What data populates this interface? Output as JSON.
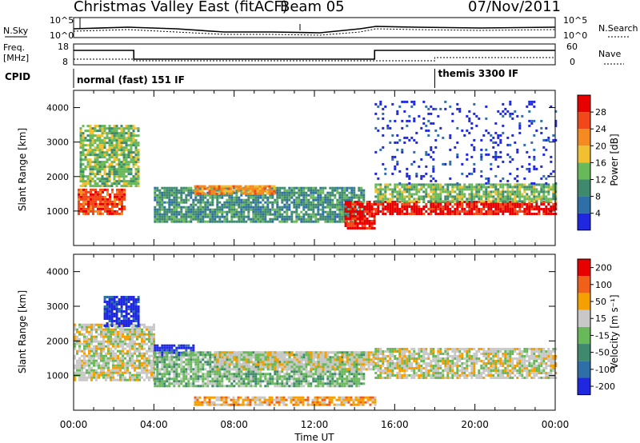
{
  "header": {
    "station": "Christmas Valley East (fitACF)",
    "beam": "Beam 05",
    "date": "07/Nov/2011"
  },
  "labels": {
    "nsky": "N.Sky",
    "nsearch": "N.Search",
    "freq": "Freq.",
    "freq_unit": "[MHz]",
    "nave": "Nave",
    "cpid": "CPID",
    "cpid_1": "normal (fast) 151 IF",
    "cpid_2": "themis 3300 IF"
  },
  "noise_panel": {
    "left_ticks": [
      "10^5",
      "10^0"
    ],
    "right_ticks": [
      "10^5",
      "10^0"
    ]
  },
  "freq_panel": {
    "left_ticks": [
      "18",
      "8"
    ],
    "right_ticks": [
      "60",
      "0"
    ],
    "freq_segments": [
      {
        "start_hour": 0,
        "end_hour": 3,
        "level": "high"
      },
      {
        "start_hour": 3,
        "end_hour": 15,
        "level": "low"
      },
      {
        "start_hour": 15,
        "end_hour": 24,
        "level": "high"
      }
    ],
    "cpid_change_hour": 18
  },
  "colors": {
    "power": [
      "#1f28e0",
      "#2f6fa8",
      "#3f8a6f",
      "#69b85a",
      "#f0c030",
      "#f58a20",
      "#f04818",
      "#e80000"
    ],
    "velocity": [
      "#1f28e0",
      "#2f6fa8",
      "#3f8a6f",
      "#69b85a",
      "#c8c8c8",
      "#f5a000",
      "#f06018",
      "#e80000"
    ]
  },
  "chart_data": [
    {
      "type": "heatmap",
      "quantity": "power",
      "ylabel": "Slant Range [km]",
      "xlabel": "Time UT",
      "y_ticks": [
        1000,
        2000,
        3000,
        4000
      ],
      "ylim": [
        0,
        4500
      ],
      "x_ticks": [
        "00:00",
        "04:00",
        "08:00",
        "12:00",
        "16:00",
        "20:00",
        "00:00"
      ],
      "xlim_hours": [
        0,
        24
      ],
      "colorbar_label": "Power [dB]",
      "colorbar_ticks": [
        "4",
        "8",
        "12",
        "16",
        "20",
        "24",
        "28"
      ],
      "regions": [
        {
          "start_hour": 0.2,
          "end_hour": 2.5,
          "range_low": 950,
          "range_high": 1650,
          "level": 6
        },
        {
          "start_hour": 0.3,
          "end_hour": 3.2,
          "range_low": 1700,
          "range_high": 3500,
          "level": 3
        },
        {
          "start_hour": 4.0,
          "end_hour": 14.5,
          "range_low": 700,
          "range_high": 1700,
          "level": 2
        },
        {
          "start_hour": 6.0,
          "end_hour": 10.0,
          "range_low": 1500,
          "range_high": 1750,
          "level": 5
        },
        {
          "start_hour": 13.5,
          "end_hour": 15.0,
          "range_low": 500,
          "range_high": 1300,
          "level": 7
        },
        {
          "start_hour": 15.0,
          "end_hour": 24.0,
          "range_low": 900,
          "range_high": 1300,
          "level": 7
        },
        {
          "start_hour": 15.0,
          "end_hour": 24.0,
          "range_low": 1300,
          "range_high": 1800,
          "level": 3
        },
        {
          "start_hour": 15.0,
          "end_hour": 24.0,
          "range_low": 1800,
          "range_high": 4200,
          "level": 0
        }
      ]
    },
    {
      "type": "heatmap",
      "quantity": "velocity",
      "ylabel": "Slant Range [km]",
      "xlabel": "Time UT",
      "y_ticks": [
        1000,
        2000,
        3000,
        4000
      ],
      "ylim": [
        0,
        4500
      ],
      "x_ticks": [
        "00:00",
        "04:00",
        "08:00",
        "12:00",
        "16:00",
        "20:00",
        "00:00"
      ],
      "xlim_hours": [
        0,
        24
      ],
      "colorbar_label": "Velocity [m s⁻¹]",
      "colorbar_ticks": [
        "200",
        "100",
        "50",
        "15",
        "-15",
        "-50",
        "-100",
        "-200"
      ],
      "regions": [
        {
          "start_hour": 0.0,
          "end_hour": 4.0,
          "range_low": 900,
          "range_high": 2500,
          "level": 4
        },
        {
          "start_hour": 1.5,
          "end_hour": 3.2,
          "range_low": 2400,
          "range_high": 3300,
          "level": 0
        },
        {
          "start_hour": 4.0,
          "end_hour": 6.0,
          "range_low": 1600,
          "range_high": 1900,
          "level": 0
        },
        {
          "start_hour": 4.0,
          "end_hour": 14.5,
          "range_low": 700,
          "range_high": 1700,
          "level": 3
        },
        {
          "start_hour": 7.0,
          "end_hour": 15.0,
          "range_low": 1200,
          "range_high": 1700,
          "level": 4
        },
        {
          "start_hour": 15.0,
          "end_hour": 24.0,
          "range_low": 900,
          "range_high": 1800,
          "level": 4
        },
        {
          "start_hour": 6.0,
          "end_hour": 15.0,
          "range_low": 150,
          "range_high": 400,
          "level": 5
        }
      ]
    }
  ]
}
